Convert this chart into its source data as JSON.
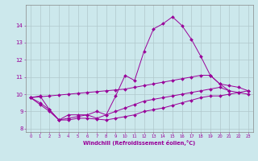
{
  "background_color": "#cce8ec",
  "line_color": "#990099",
  "grid_color": "#b0c8cc",
  "xlim": [
    -0.5,
    23.5
  ],
  "ylim": [
    7.8,
    15.2
  ],
  "xticks": [
    0,
    1,
    2,
    3,
    4,
    5,
    6,
    7,
    8,
    9,
    10,
    11,
    12,
    13,
    14,
    15,
    16,
    17,
    18,
    19,
    20,
    21,
    22,
    23
  ],
  "yticks": [
    8,
    9,
    10,
    11,
    12,
    13,
    14
  ],
  "xlabel": "Windchill (Refroidissement éolien,°C)",
  "line1_x": [
    0,
    1,
    2,
    3,
    4,
    5,
    6,
    7,
    8,
    9,
    10,
    11,
    12,
    13,
    14,
    15,
    16,
    17,
    18,
    19,
    20,
    21
  ],
  "line1_y": [
    9.8,
    9.9,
    9.1,
    8.5,
    8.8,
    8.8,
    8.8,
    8.6,
    8.8,
    9.9,
    11.1,
    10.8,
    12.5,
    13.8,
    14.1,
    14.5,
    14.0,
    13.2,
    12.2,
    11.1,
    10.6,
    10.2
  ],
  "line2_x": [
    0,
    1,
    2,
    3,
    4,
    5,
    6,
    7,
    8,
    9,
    10,
    11,
    12,
    13,
    14,
    15,
    16,
    17,
    18,
    19,
    20,
    21,
    22,
    23
  ],
  "line2_y": [
    9.8,
    9.85,
    9.9,
    9.95,
    10.0,
    10.05,
    10.1,
    10.15,
    10.2,
    10.25,
    10.3,
    10.4,
    10.5,
    10.6,
    10.7,
    10.8,
    10.9,
    11.0,
    11.1,
    11.1,
    10.6,
    10.5,
    10.4,
    10.2
  ],
  "line3_x": [
    0,
    1,
    2,
    3,
    4,
    5,
    6,
    7,
    8,
    9,
    10,
    11,
    12,
    13,
    14,
    15,
    16,
    17,
    18,
    19,
    20,
    21,
    22,
    23
  ],
  "line3_y": [
    9.8,
    9.5,
    9.1,
    8.5,
    8.6,
    8.7,
    8.8,
    9.0,
    8.8,
    9.0,
    9.2,
    9.4,
    9.6,
    9.7,
    9.8,
    9.9,
    10.0,
    10.1,
    10.2,
    10.3,
    10.4,
    10.2,
    10.1,
    10.0
  ],
  "line4_x": [
    0,
    1,
    2,
    3,
    4,
    5,
    6,
    7,
    8,
    9,
    10,
    11,
    12,
    13,
    14,
    15,
    16,
    17,
    18,
    19,
    20,
    21,
    22,
    23
  ],
  "line4_y": [
    9.8,
    9.4,
    9.0,
    8.5,
    8.5,
    8.6,
    8.6,
    8.55,
    8.5,
    8.6,
    8.7,
    8.8,
    9.0,
    9.1,
    9.2,
    9.35,
    9.5,
    9.65,
    9.8,
    9.9,
    9.9,
    10.0,
    10.1,
    10.2
  ]
}
